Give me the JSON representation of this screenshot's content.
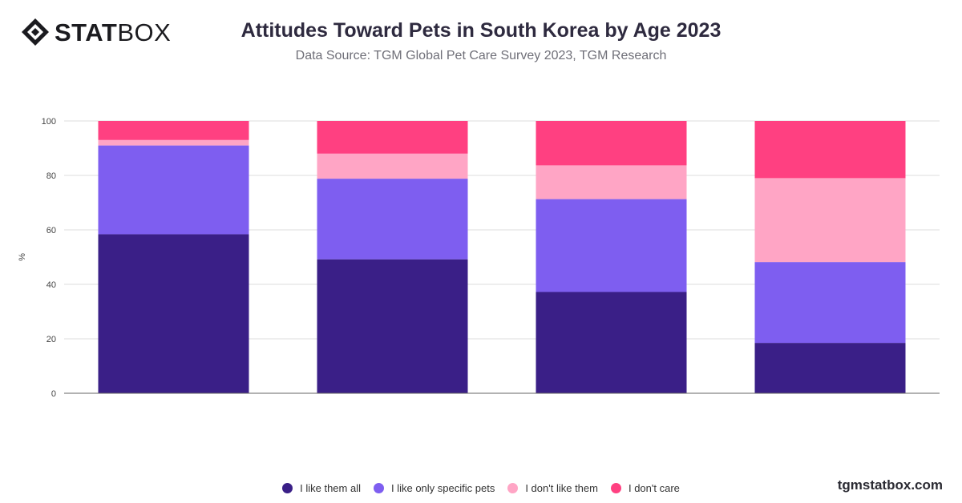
{
  "brand": {
    "logo_bold": "STAT",
    "logo_regular": "BOX",
    "watermark": "tgmstatbox.com"
  },
  "chart_data": {
    "type": "bar",
    "stacked": true,
    "title": "Attitudes Toward Pets in South Korea by Age 2023",
    "subtitle": "Data Source: TGM Global Pet Care Survey 2023, TGM Research",
    "xlabel": "",
    "ylabel": "%",
    "ylim": [
      0,
      100
    ],
    "yticks": [
      0,
      20,
      40,
      60,
      80,
      100
    ],
    "grid": true,
    "legend_position": "bottom",
    "categories": [
      "",
      "",
      "",
      ""
    ],
    "series": [
      {
        "name": "I like them all",
        "color": "#3a1f87",
        "values": [
          58.4,
          49.2,
          37.2,
          18.5
        ]
      },
      {
        "name": "I like only specific pets",
        "color": "#7e5ef0",
        "values": [
          32.6,
          29.6,
          34.1,
          29.7
        ]
      },
      {
        "name": "I don't like them",
        "color": "#ffa5c5",
        "values": [
          2.0,
          9.2,
          12.4,
          30.8
        ]
      },
      {
        "name": "I don't care",
        "color": "#ff4081",
        "values": [
          7.0,
          12.0,
          16.3,
          21.0
        ]
      }
    ]
  }
}
